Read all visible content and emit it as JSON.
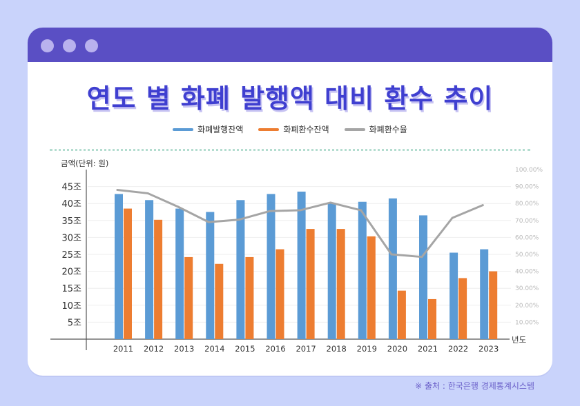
{
  "title": "연도 별 화폐 발행액 대비 환수 추이",
  "source": "※ 출처 : 한국은행 경제통계시스템",
  "legend": [
    {
      "label": "화폐발행잔액",
      "color": "#5b9bd5"
    },
    {
      "label": "화폐환수잔액",
      "color": "#ed7d31"
    },
    {
      "label": "화폐환수율",
      "color": "#a5a5a5"
    }
  ],
  "chart_data": {
    "type": "bar",
    "categories": [
      "2011",
      "2012",
      "2013",
      "2014",
      "2015",
      "2016",
      "2017",
      "2018",
      "2019",
      "2020",
      "2021",
      "2022",
      "2023"
    ],
    "series": [
      {
        "name": "화폐발행잔액",
        "type": "bar",
        "axis": "left",
        "color": "#5b9bd5",
        "values": [
          42.8,
          41.0,
          38.5,
          37.5,
          41.0,
          42.8,
          43.5,
          40.0,
          40.5,
          41.5,
          36.5,
          25.5,
          26.5
        ]
      },
      {
        "name": "화폐환수잔액",
        "type": "bar",
        "axis": "left",
        "color": "#ed7d31",
        "values": [
          38.5,
          35.2,
          24.2,
          22.2,
          24.2,
          26.5,
          32.5,
          32.5,
          30.3,
          14.3,
          11.8,
          18.0,
          20.0
        ]
      },
      {
        "name": "화폐환수율",
        "type": "line",
        "axis": "right",
        "color": "#a5a5a5",
        "values": [
          0.88,
          0.86,
          0.78,
          0.69,
          0.705,
          0.755,
          0.76,
          0.805,
          0.76,
          0.5,
          0.485,
          0.715,
          0.79
        ]
      }
    ],
    "ylabel": "금액(단위: 원)",
    "xlabel": "년도",
    "y_ticks": [
      "5조",
      "10조",
      "15조",
      "20조",
      "25조",
      "30조",
      "35조",
      "40조",
      "45조"
    ],
    "y_tick_values": [
      5,
      10,
      15,
      20,
      25,
      30,
      35,
      40,
      45
    ],
    "ylim": [
      0,
      50
    ],
    "y2_ticks": [
      "10.00%",
      "20.00%",
      "30.00%",
      "40.00%",
      "50.00%",
      "60.00%",
      "70.00%",
      "80.00%",
      "90.00%",
      "100.00%"
    ],
    "y2_tick_values": [
      0.1,
      0.2,
      0.3,
      0.4,
      0.5,
      0.6,
      0.7,
      0.8,
      0.9,
      1.0
    ],
    "y2lim": [
      0.0,
      1.0
    ]
  }
}
